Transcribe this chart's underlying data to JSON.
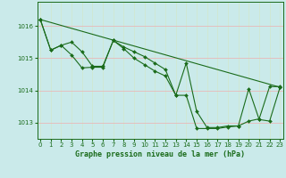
{
  "title": "Graphe pression niveau de la mer (hPa)",
  "bg_color": "#caeaea",
  "grid_color": "#b8d8d8",
  "line_color": "#1a6b1a",
  "ylim": [
    1012.5,
    1016.75
  ],
  "xlim": [
    -0.3,
    23.3
  ],
  "yticks": [
    1013,
    1014,
    1015,
    1016
  ],
  "xticks": [
    0,
    1,
    2,
    3,
    4,
    5,
    6,
    7,
    8,
    9,
    10,
    11,
    12,
    13,
    14,
    15,
    16,
    17,
    18,
    19,
    20,
    21,
    22,
    23
  ],
  "series1_x": [
    0,
    1,
    2,
    3,
    4,
    5,
    6,
    7,
    8,
    9,
    10,
    11,
    12,
    13,
    14,
    15,
    16,
    17,
    18,
    19,
    20,
    21,
    22,
    23
  ],
  "series1_y": [
    1016.2,
    1015.25,
    1015.4,
    1015.5,
    1015.2,
    1014.75,
    1014.75,
    1015.55,
    1015.35,
    1015.2,
    1015.05,
    1014.85,
    1014.65,
    1013.85,
    1014.85,
    1013.35,
    1012.85,
    1012.85,
    1012.9,
    1012.9,
    1014.05,
    1013.1,
    1013.05,
    1014.1
  ],
  "series2_x": [
    0,
    1,
    2,
    3,
    4,
    5,
    6,
    7,
    8,
    9,
    10,
    11,
    12,
    13,
    14,
    15,
    16,
    17,
    18,
    19,
    20,
    21,
    22,
    23
  ],
  "series2_y": [
    1016.2,
    1015.25,
    1015.4,
    1015.1,
    1014.7,
    1014.72,
    1014.72,
    1015.55,
    1015.3,
    1015.0,
    1014.8,
    1014.6,
    1014.45,
    1013.85,
    1013.85,
    1012.82,
    1012.82,
    1012.82,
    1012.87,
    1012.9,
    1013.05,
    1013.12,
    1014.12,
    1014.12
  ],
  "series3_x": [
    0,
    23
  ],
  "series3_y": [
    1016.2,
    1014.1
  ]
}
